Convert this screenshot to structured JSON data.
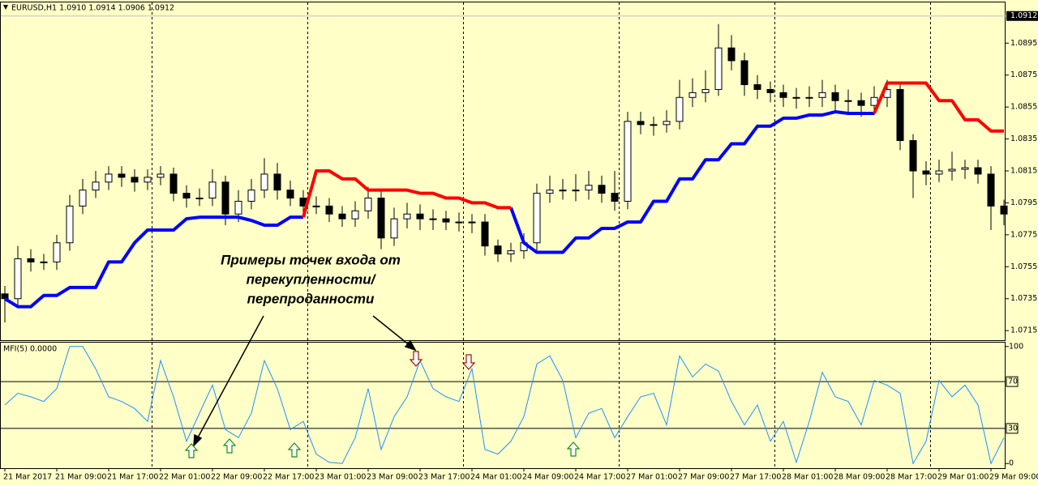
{
  "chart_data": [
    {
      "type": "candlestick",
      "title": "EURUSD,H1 1.0910 1.0914 1.0906 1.0912",
      "categories": [
        "21 Mar 2017",
        null,
        null,
        null,
        "21 Mar 09:00",
        null,
        null,
        null,
        "21 Mar 17:00",
        null,
        null,
        null,
        "22 Mar 01:00",
        null,
        null,
        null,
        "22 Mar 09:00",
        null,
        null,
        null,
        "22 Mar 17:00",
        null,
        null,
        null,
        "23 Mar 01:00",
        null,
        null,
        null,
        "23 Mar 09:00",
        null,
        null,
        null,
        "23 Mar 17:00",
        null,
        null,
        null,
        "24 Mar 01:00",
        null,
        null,
        null,
        "24 Mar 09:00",
        null,
        null,
        null,
        "24 Mar 17:00",
        null,
        null,
        null,
        "27 Mar 01:00",
        null,
        null,
        null,
        "27 Mar 09:00",
        null,
        null,
        null,
        "27 Mar 17:00",
        null,
        null,
        null,
        "28 Mar 01:00",
        null,
        null,
        null,
        "28 Mar 09:00",
        null,
        null,
        null,
        "28 Mar 17:00",
        null,
        null,
        null,
        "29 Mar 01:00",
        null,
        null,
        null,
        "29 Mar 09:00",
        null
      ],
      "open": [
        1.0738,
        1.0735,
        1.076,
        1.0758,
        1.0758,
        1.077,
        1.0793,
        1.0803,
        1.0808,
        1.0813,
        1.0811,
        1.0808,
        1.0811,
        1.0813,
        1.0801,
        1.0798,
        1.0798,
        1.0808,
        1.0788,
        1.0796,
        1.0803,
        1.0813,
        1.0803,
        1.0798,
        1.0793,
        1.0793,
        1.0788,
        1.0785,
        1.079,
        1.0798,
        1.0773,
        1.0785,
        1.0788,
        1.0785,
        1.0785,
        1.0783,
        1.0783,
        1.0783,
        1.0768,
        1.0763,
        1.0765,
        1.077,
        1.0801,
        1.0803,
        1.0803,
        1.0803,
        1.0806,
        1.0801,
        1.0796,
        1.0846,
        1.0844,
        1.0844,
        1.0846,
        1.0861,
        1.0864,
        1.0866,
        1.0892,
        1.0884,
        1.0869,
        1.0866,
        1.0864,
        1.0861,
        1.0861,
        1.0861,
        1.0864,
        1.0859,
        1.0859,
        1.0856,
        1.0861,
        1.0866,
        1.0834,
        1.0815,
        1.0813,
        1.0815,
        1.0816,
        1.0817,
        1.0813,
        1.0793
      ],
      "high": [
        1.0743,
        1.0768,
        1.0766,
        1.0763,
        1.0775,
        1.08,
        1.081,
        1.0815,
        1.0818,
        1.0818,
        1.0816,
        1.0816,
        1.0818,
        1.0817,
        1.0806,
        1.0804,
        1.0816,
        1.0812,
        1.0803,
        1.081,
        1.0823,
        1.082,
        1.0809,
        1.0803,
        1.0799,
        1.0798,
        1.0793,
        1.0796,
        1.0805,
        1.0803,
        1.0792,
        1.0795,
        1.0794,
        1.0791,
        1.079,
        1.0789,
        1.0788,
        1.0788,
        1.0772,
        1.077,
        1.0776,
        1.0807,
        1.0812,
        1.081,
        1.0813,
        1.0815,
        1.0812,
        1.0815,
        1.0852,
        1.0852,
        1.0849,
        1.0853,
        1.0872,
        1.0873,
        1.0878,
        1.0907,
        1.09,
        1.0889,
        1.0875,
        1.0871,
        1.0869,
        1.0867,
        1.0868,
        1.0872,
        1.0869,
        1.0866,
        1.0864,
        1.0868,
        1.0872,
        1.0871,
        1.0838,
        1.0821,
        1.0822,
        1.0827,
        1.0822,
        1.0822,
        1.0818,
        1.0797
      ],
      "low": [
        1.072,
        1.073,
        1.0752,
        1.0753,
        1.0753,
        1.0765,
        1.0788,
        1.0798,
        1.0803,
        1.0805,
        1.0802,
        1.0803,
        1.0806,
        1.0796,
        1.0792,
        1.0793,
        1.0793,
        1.0781,
        1.0783,
        1.0791,
        1.0798,
        1.0797,
        1.0793,
        1.0787,
        1.0788,
        1.0783,
        1.078,
        1.078,
        1.0785,
        1.0766,
        1.0768,
        1.0779,
        1.0778,
        1.0778,
        1.0778,
        1.0777,
        1.0776,
        1.0762,
        1.0758,
        1.0758,
        1.076,
        1.0765,
        1.0795,
        1.0797,
        1.0796,
        1.0797,
        1.0795,
        1.079,
        1.0791,
        1.0838,
        1.0837,
        1.0839,
        1.0841,
        1.0855,
        1.0858,
        1.0862,
        1.0878,
        1.0862,
        1.086,
        1.0858,
        1.0855,
        1.0854,
        1.0855,
        1.0855,
        1.0852,
        1.0852,
        1.0849,
        1.085,
        1.0855,
        1.0828,
        1.0798,
        1.0806,
        1.0808,
        1.0809,
        1.081,
        1.0807,
        1.0778,
        1.0781
      ],
      "close": [
        1.0735,
        1.076,
        1.0758,
        1.0758,
        1.077,
        1.0793,
        1.0803,
        1.0808,
        1.0813,
        1.0811,
        1.0808,
        1.0811,
        1.0813,
        1.0801,
        1.0798,
        1.0798,
        1.0808,
        1.0788,
        1.0796,
        1.0803,
        1.0813,
        1.0803,
        1.0798,
        1.0793,
        1.0793,
        1.0788,
        1.0785,
        1.079,
        1.0798,
        1.0773,
        1.0785,
        1.0788,
        1.0785,
        1.0785,
        1.0783,
        1.0783,
        1.0783,
        1.0768,
        1.0763,
        1.0765,
        1.077,
        1.0801,
        1.0803,
        1.0803,
        1.0803,
        1.0806,
        1.0801,
        1.0796,
        1.0846,
        1.0844,
        1.0844,
        1.0846,
        1.0861,
        1.0864,
        1.0866,
        1.0892,
        1.0884,
        1.0869,
        1.0866,
        1.0864,
        1.0861,
        1.0861,
        1.0861,
        1.0864,
        1.0859,
        1.0859,
        1.0856,
        1.0861,
        1.0866,
        1.0834,
        1.0815,
        1.0813,
        1.0815,
        1.0816,
        1.0817,
        1.0813,
        1.0793,
        1.0788
      ],
      "up_color": "#ffffff",
      "down_color": "#000000",
      "series": [
        {
          "color": "#0000ff",
          "values": [
            1.0735,
            1.073,
            1.073,
            1.0737,
            1.0737,
            1.0742,
            1.0742,
            1.0742,
            1.0758,
            1.0758,
            1.077,
            1.0778,
            1.0778,
            1.0778,
            1.0785,
            1.0786,
            1.0786,
            1.0786,
            1.0786,
            1.0784,
            1.0781,
            1.0781,
            1.0786,
            1.0786,
            null,
            null,
            null,
            null,
            null,
            null,
            null,
            null,
            null,
            null,
            null,
            null,
            null,
            null,
            null,
            1.0792,
            1.077,
            1.0764,
            1.0764,
            1.0764,
            1.0773,
            1.0773,
            1.0779,
            1.0779,
            1.0783,
            1.0783,
            1.0796,
            1.0796,
            1.081,
            1.081,
            1.0822,
            1.0822,
            1.0832,
            1.0832,
            1.0843,
            1.0843,
            1.0848,
            1.0848,
            1.085,
            1.085,
            1.0852,
            1.0851,
            1.0851,
            1.0851,
            null,
            null,
            null,
            null,
            null,
            null,
            null,
            null,
            null,
            null
          ]
        },
        {
          "color": "#ff0000",
          "values": [
            null,
            null,
            null,
            null,
            null,
            null,
            null,
            null,
            null,
            null,
            null,
            null,
            null,
            null,
            null,
            null,
            null,
            null,
            null,
            null,
            null,
            null,
            null,
            1.0786,
            1.0815,
            1.0815,
            1.081,
            1.081,
            1.0803,
            1.0803,
            1.0803,
            1.0803,
            1.0801,
            1.0801,
            1.0798,
            1.0798,
            1.0795,
            1.0795,
            1.0792,
            1.0792,
            null,
            null,
            null,
            null,
            null,
            null,
            null,
            null,
            null,
            null,
            null,
            null,
            null,
            null,
            null,
            null,
            null,
            null,
            null,
            null,
            null,
            null,
            null,
            null,
            null,
            null,
            null,
            1.0851,
            1.087,
            1.087,
            1.087,
            1.087,
            1.0859,
            1.0859,
            1.0847,
            1.0847,
            1.084,
            1.084
          ]
        }
      ],
      "ylim": [
        1.0709,
        1.0921
      ],
      "yticks": [
        1.0715,
        1.0735,
        1.0755,
        1.0775,
        1.0795,
        1.0815,
        1.0835,
        1.0855,
        1.0875,
        1.0895
      ],
      "current_price": 1.0912,
      "annotation": [
        "Примеры точек входа от",
        "перекупленности/",
        "перепроданности"
      ]
    },
    {
      "type": "line",
      "title": "MFI(5) 0.0000",
      "color": "#1e90ff",
      "values": [
        50,
        60,
        57,
        53,
        64,
        100,
        100,
        81,
        57,
        53,
        47,
        36,
        88,
        57,
        19,
        43,
        67,
        29,
        22,
        43,
        88,
        64,
        29,
        36,
        8,
        1,
        0,
        22,
        64,
        12,
        40,
        57,
        88,
        64,
        57,
        53,
        81,
        12,
        8,
        19,
        40,
        85,
        92,
        71,
        22,
        43,
        47,
        22,
        40,
        57,
        60,
        33,
        92,
        74,
        85,
        79,
        53,
        33,
        50,
        19,
        36,
        1,
        36,
        78,
        57,
        53,
        33,
        71,
        67,
        60,
        0,
        19,
        71,
        57,
        67,
        50,
        0,
        22
      ],
      "ylim": [
        -4,
        104
      ],
      "yticks": [
        0,
        100
      ],
      "levels": [
        30,
        70
      ]
    }
  ]
}
